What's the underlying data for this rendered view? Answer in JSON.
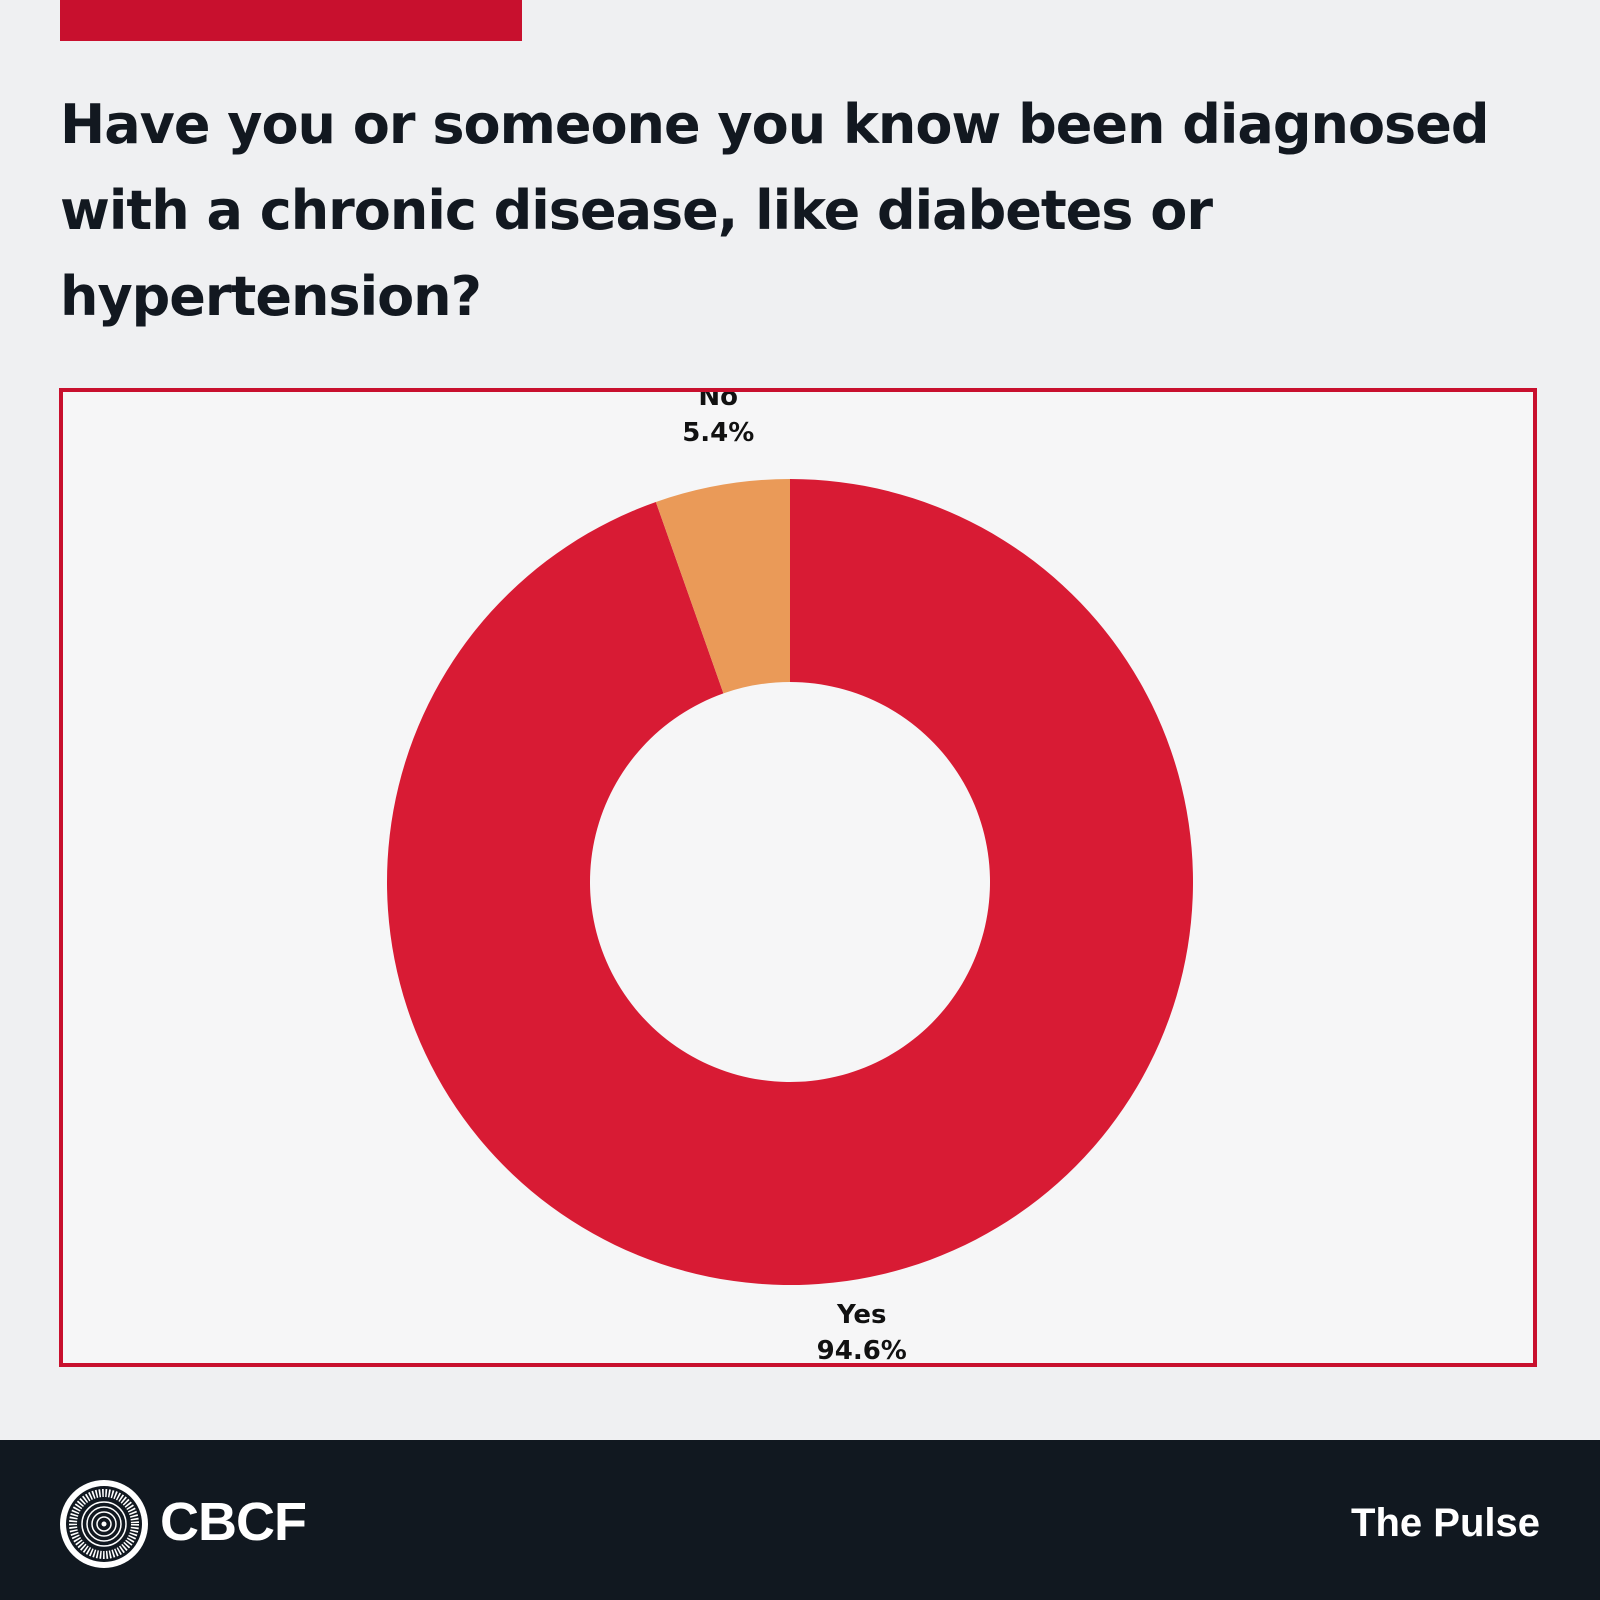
{
  "header": {
    "title": "Have you or someone you know been diagnosed with a chronic disease, like diabetes or hypertension?"
  },
  "chart_data": {
    "type": "pie",
    "style": "donut",
    "title": "Have you or someone you know been diagnosed with a chronic disease, like diabetes or hypertension?",
    "categories": [
      "Yes",
      "No"
    ],
    "values": [
      94.6,
      5.4
    ],
    "value_labels": [
      "94.6%",
      "5.4%"
    ],
    "colors": [
      "#d81b34",
      "#ea9a58"
    ],
    "start": "12 o'clock, clockwise",
    "legend": "none"
  },
  "colors": {
    "accent": "#c8102e",
    "footer_background": "#111820",
    "page_background": "#eff0f2"
  },
  "footer": {
    "logo_icon": "cbcf-seal-icon",
    "brand": "CBCF",
    "title": "The Pulse"
  }
}
